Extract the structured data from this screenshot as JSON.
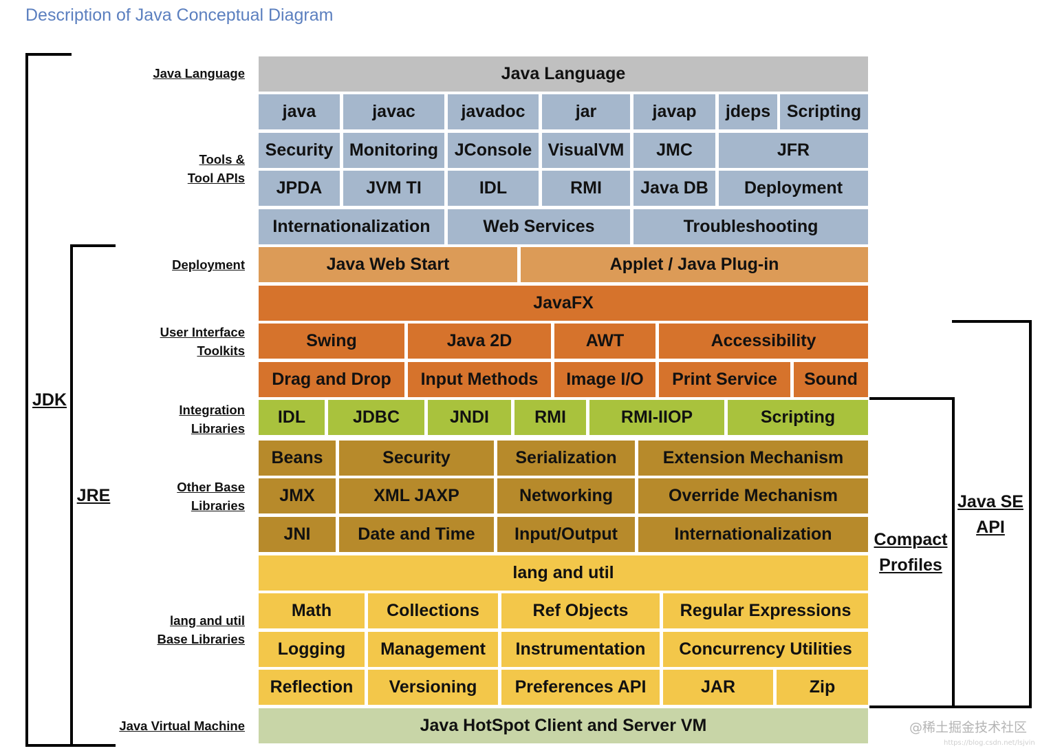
{
  "title": "Description of Java Conceptual Diagram",
  "colors": {
    "title": "#5b7fbf",
    "java_language": "#c0c0c0",
    "tools": "#a5b7cc",
    "deployment": "#dc9b57",
    "ui_toolkits": "#d6732c",
    "integration": "#a9c23d",
    "other_base": "#b78a2b",
    "lang_util": "#f3c74a",
    "jvm": "#c8d5a7"
  },
  "row_labels": {
    "java_language": [
      "Java Language"
    ],
    "tools": [
      "Tools &",
      "Tool APIs"
    ],
    "deployment": [
      "Deployment"
    ],
    "ui_toolkits": [
      "User Interface",
      "Toolkits"
    ],
    "integration": [
      "Integration",
      "Libraries"
    ],
    "other_base": [
      "Other Base",
      "Libraries"
    ],
    "lang_util": [
      "lang and util",
      "Base Libraries"
    ],
    "jvm": [
      "Java Virtual Machine"
    ]
  },
  "rows": [
    {
      "group": "java_language",
      "cells": [
        "Java Language"
      ]
    },
    {
      "group": "tools",
      "cells": [
        "java",
        "javac",
        "javadoc",
        "jar",
        "javap",
        "jdeps",
        "Scripting"
      ]
    },
    {
      "group": "tools",
      "cells": [
        "Security",
        "Monitoring",
        "JConsole",
        "VisualVM",
        "JMC",
        "JFR"
      ]
    },
    {
      "group": "tools",
      "cells": [
        "JPDA",
        "JVM TI",
        "IDL",
        "RMI",
        "Java DB",
        "Deployment"
      ]
    },
    {
      "group": "tools",
      "cells": [
        "Internationalization",
        "Web Services",
        "Troubleshooting"
      ]
    },
    {
      "group": "deployment",
      "cells": [
        "Java Web Start",
        "Applet / Java Plug-in"
      ]
    },
    {
      "group": "ui_toolkits",
      "cells": [
        "JavaFX"
      ]
    },
    {
      "group": "ui_toolkits",
      "cells": [
        "Swing",
        "Java 2D",
        "AWT",
        "Accessibility"
      ]
    },
    {
      "group": "ui_toolkits",
      "cells": [
        "Drag and Drop",
        "Input Methods",
        "Image I/O",
        "Print Service",
        "Sound"
      ]
    },
    {
      "group": "integration",
      "cells": [
        "IDL",
        "JDBC",
        "JNDI",
        "RMI",
        "RMI-IIOP",
        "Scripting"
      ]
    },
    {
      "group": "other_base",
      "cells": [
        "Beans",
        "Security",
        "Serialization",
        "Extension Mechanism"
      ]
    },
    {
      "group": "other_base",
      "cells": [
        "JMX",
        "XML JAXP",
        "Networking",
        "Override Mechanism"
      ]
    },
    {
      "group": "other_base",
      "cells": [
        "JNI",
        "Date and Time",
        "Input/Output",
        "Internationalization"
      ]
    },
    {
      "group": "lang_util",
      "cells": [
        "lang and util"
      ]
    },
    {
      "group": "lang_util",
      "cells": [
        "Math",
        "Collections",
        "Ref Objects",
        "Regular Expressions"
      ]
    },
    {
      "group": "lang_util",
      "cells": [
        "Logging",
        "Management",
        "Instrumentation",
        "Concurrency Utilities"
      ]
    },
    {
      "group": "lang_util",
      "cells": [
        "Reflection",
        "Versioning",
        "Preferences API",
        "JAR",
        "Zip"
      ]
    },
    {
      "group": "jvm",
      "cells": [
        "Java HotSpot Client and Server VM"
      ]
    }
  ],
  "brackets": {
    "jdk": [
      "JDK"
    ],
    "jre": [
      "JRE"
    ],
    "compact_profiles": [
      "Compact",
      "Profiles"
    ],
    "java_se_api": [
      "Java SE",
      "API"
    ]
  },
  "watermark": "@稀土掘金技术社区",
  "watermark_url": "https://blog.csdn.net/lsjvin"
}
